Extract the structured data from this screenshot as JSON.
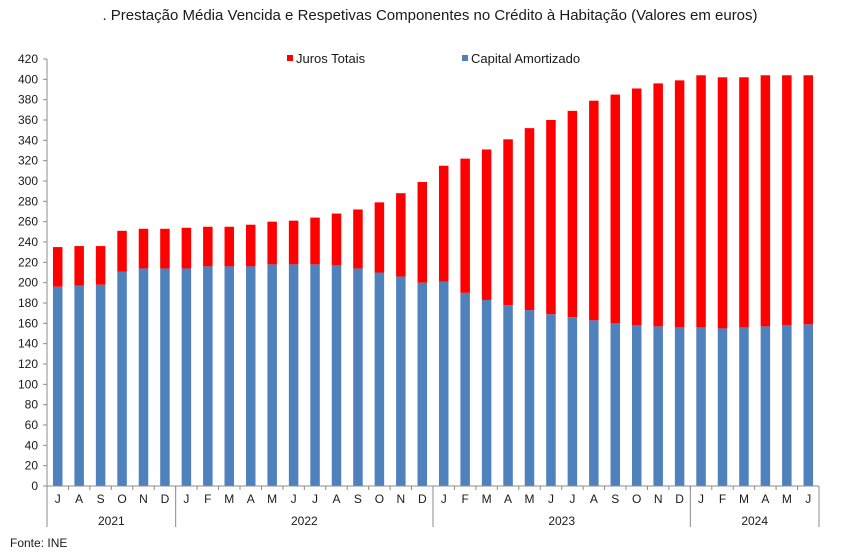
{
  "title": ". Prestação Média Vencida e Respetivas Componentes no Crédito à Habitação (Valores em euros)",
  "source": "Fonte: INE",
  "chart_data": {
    "type": "bar",
    "stacked": true,
    "title": ". Prestação Média Vencida e Respetivas Componentes no Crédito à Habitação (Valores em euros)",
    "xlabel": "",
    "ylabel": "",
    "ylim": [
      0,
      420
    ],
    "yticks": [
      0,
      20,
      40,
      60,
      80,
      100,
      120,
      140,
      160,
      180,
      200,
      220,
      240,
      260,
      280,
      300,
      320,
      340,
      360,
      380,
      400,
      420
    ],
    "legend_position": "top",
    "categories": [
      "J",
      "A",
      "S",
      "O",
      "N",
      "D",
      "J",
      "F",
      "M",
      "A",
      "M",
      "J",
      "J",
      "A",
      "S",
      "O",
      "N",
      "D",
      "J",
      "F",
      "M",
      "A",
      "M",
      "J",
      "J",
      "A",
      "S",
      "O",
      "N",
      "D",
      "J",
      "F",
      "M",
      "A",
      "M",
      "J"
    ],
    "years": [
      {
        "label": "2021",
        "start": 0,
        "count": 6
      },
      {
        "label": "2022",
        "start": 6,
        "count": 12
      },
      {
        "label": "2023",
        "start": 18,
        "count": 12
      },
      {
        "label": "2024",
        "start": 30,
        "count": 6
      }
    ],
    "series": [
      {
        "name": "Capital Amortizado",
        "color": "#4F81BD",
        "values": [
          196,
          197,
          198,
          211,
          214,
          214,
          214,
          216,
          216,
          216,
          218,
          218,
          218,
          217,
          214,
          210,
          206,
          200,
          201,
          190,
          183,
          178,
          173,
          169,
          166,
          163,
          160,
          158,
          157,
          156,
          156,
          155,
          156,
          157,
          158,
          159
        ]
      },
      {
        "name": "Juros Totais",
        "color": "#FF0000",
        "values": [
          39,
          39,
          38,
          40,
          39,
          39,
          40,
          39,
          39,
          41,
          42,
          43,
          46,
          51,
          58,
          69,
          82,
          99,
          114,
          132,
          148,
          163,
          179,
          191,
          203,
          216,
          225,
          233,
          239,
          243,
          248,
          247,
          246,
          247,
          246,
          245
        ]
      }
    ]
  }
}
